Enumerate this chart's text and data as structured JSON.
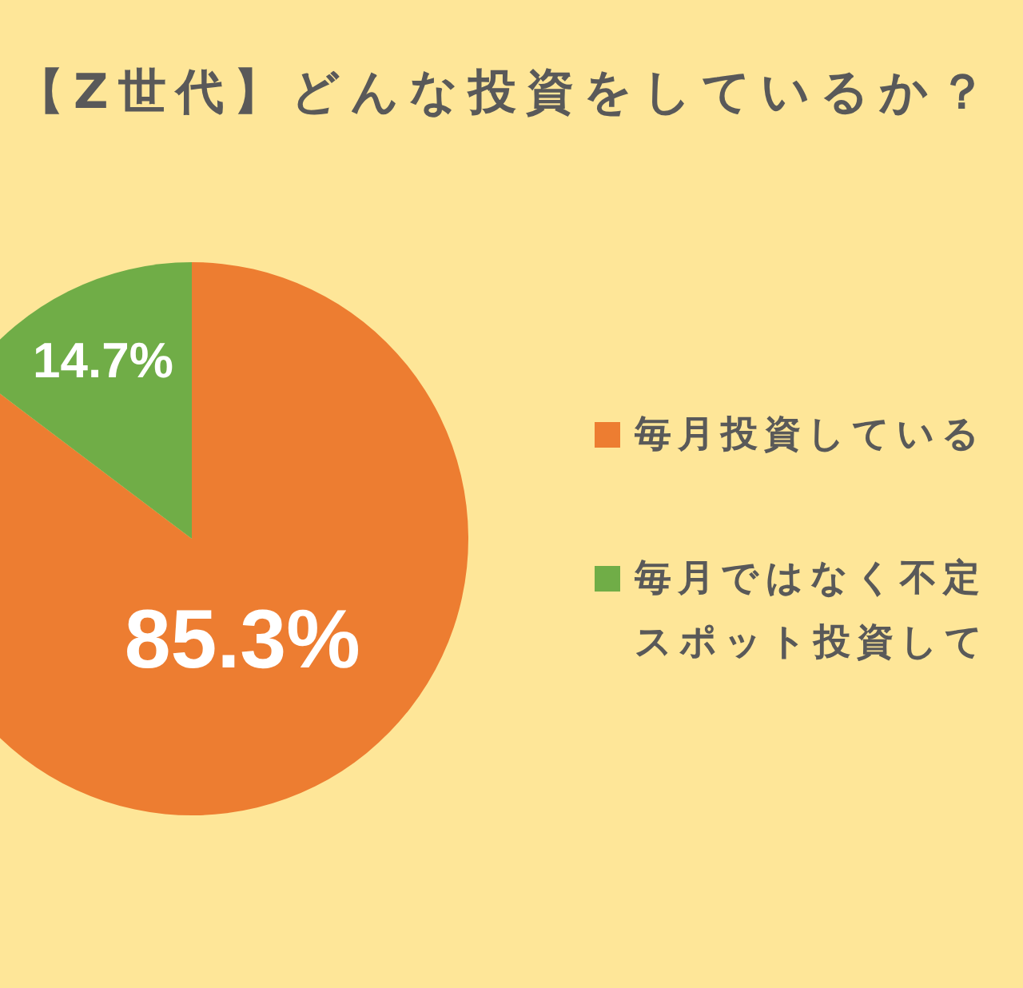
{
  "chart_data": {
    "type": "pie",
    "title": "【Z世代】どんな投資をしているか？",
    "categories": [
      "毎月投資している",
      "毎月ではなく不定スポット投資して"
    ],
    "values": [
      85.3,
      14.7
    ],
    "value_labels": [
      "85.3%",
      "14.7%"
    ],
    "colors": [
      "#ed7d31",
      "#70ad47"
    ],
    "legend": "right"
  }
}
